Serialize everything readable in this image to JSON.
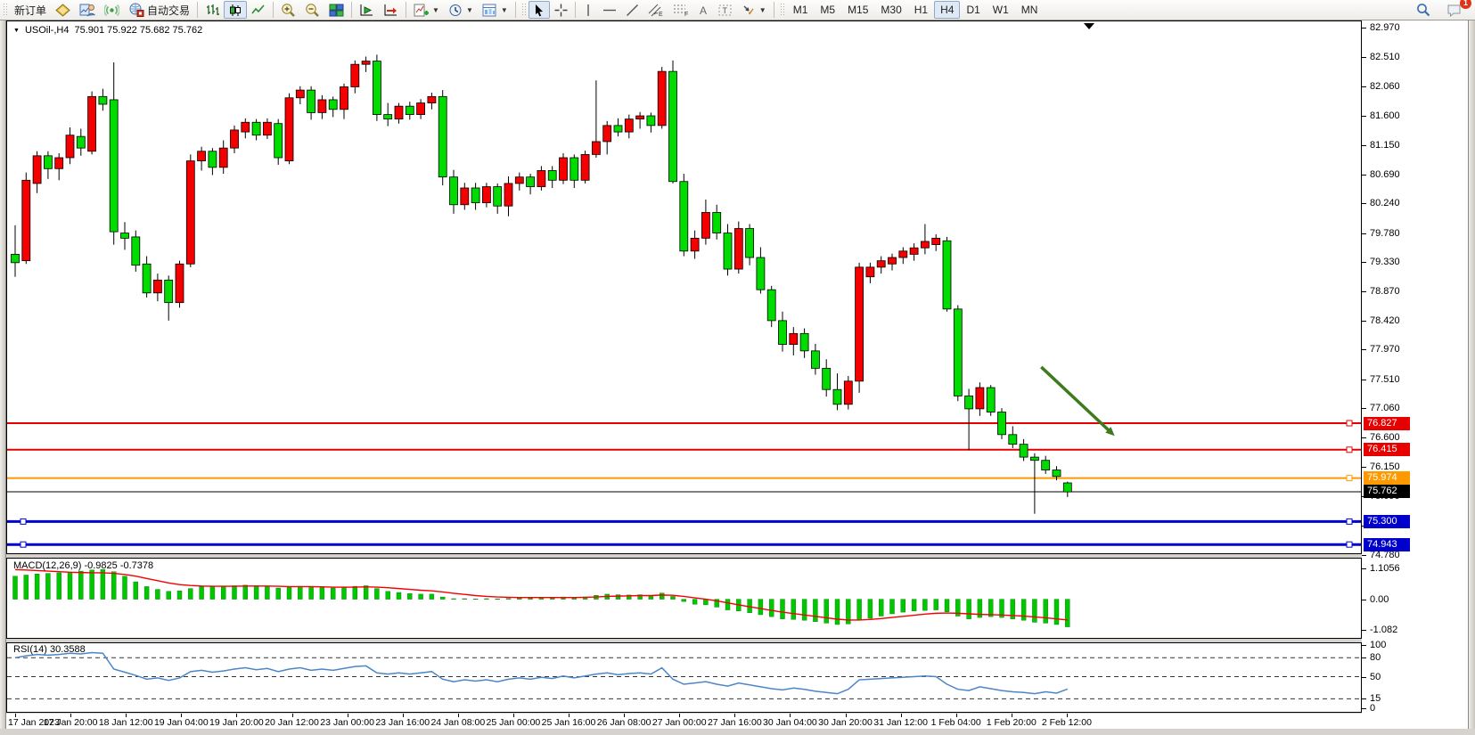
{
  "toolbar": {
    "new_order_label": "新订单",
    "auto_trading_label": "自动交易",
    "timeframes": [
      "M1",
      "M5",
      "M15",
      "M30",
      "H1",
      "H4",
      "D1",
      "W1",
      "MN"
    ],
    "active_timeframe": "H4",
    "notification_count": "1",
    "icons": [
      "market-watch-icon",
      "data-window-icon",
      "signals-icon",
      "auto-trading-icon",
      "bar-chart-icon",
      "candlestick-chart-icon",
      "line-chart-icon",
      "zoom-in-icon",
      "zoom-out-icon",
      "tile-windows-icon",
      "auto-scroll-icon",
      "chart-shift-icon",
      "indicators-icon",
      "periods-icon",
      "templates-icon",
      "cursor-icon",
      "crosshair-icon",
      "vertical-line-icon",
      "horizontal-line-icon",
      "trendline-icon",
      "channel-icon",
      "fibonacci-icon",
      "text-icon",
      "label-icon",
      "arrows-icon",
      "search-icon",
      "chat-icon"
    ]
  },
  "chart": {
    "symbol_label": "USOil-,H4",
    "ohlc_label": "75.901 75.922 75.682 75.762",
    "macd_label": "MACD(12,26,9) -0.9825 -0.7378",
    "rsi_label": "RSI(14) 30.3588"
  },
  "colors": {
    "up_candle": "#F40000",
    "down_candle": "#00DC00",
    "wick": "#000000",
    "macd_hist": "#00C800",
    "macd_signal": "#F40000",
    "rsi_line": "#4C86C8",
    "level_red": "#E60000",
    "level_orange": "#FF9900",
    "level_blue": "#0000CC",
    "price_line": "#000000",
    "arrow": "#3E7A1E"
  },
  "chart_data": {
    "type": "candlestick",
    "symbol": "USOil",
    "timeframe": "H4",
    "last_ohlc": {
      "open": 75.901,
      "high": 75.922,
      "low": 75.682,
      "close": 75.762
    },
    "price_ticks": [
      "82.970",
      "82.510",
      "82.060",
      "81.600",
      "81.150",
      "80.690",
      "80.240",
      "79.780",
      "79.330",
      "78.870",
      "78.420",
      "77.970",
      "77.510",
      "77.060",
      "76.600",
      "76.150",
      "75.690",
      "75.240",
      "74.780"
    ],
    "time_labels": [
      "17 Jan 2023",
      "17 Jan 20:00",
      "18 Jan 12:00",
      "19 Jan 04:00",
      "19 Jan 20:00",
      "20 Jan 12:00",
      "23 Jan 00:00",
      "23 Jan 16:00",
      "24 Jan 08:00",
      "25 Jan 00:00",
      "25 Jan 16:00",
      "26 Jan 08:00",
      "27 Jan 00:00",
      "27 Jan 16:00",
      "30 Jan 04:00",
      "30 Jan 20:00",
      "31 Jan 12:00",
      "1 Feb 04:00",
      "1 Feb 20:00",
      "2 Feb 12:00"
    ],
    "hlines": [
      {
        "price": 76.827,
        "label": "76.827",
        "color": "#E60000",
        "width": 2,
        "handles": "right"
      },
      {
        "price": 76.415,
        "label": "76.415",
        "color": "#E60000",
        "width": 2,
        "handles": "right"
      },
      {
        "price": 75.974,
        "label": "75.974",
        "color": "#FF9900",
        "width": 2,
        "handles": "right"
      },
      {
        "price": 75.762,
        "label": "75.762",
        "color": "#000000",
        "width": 1,
        "handles": "none"
      },
      {
        "price": 75.3,
        "label": "75.300",
        "color": "#0000CC",
        "width": 3,
        "handles": "left-right"
      },
      {
        "price": 74.943,
        "label": "74.943",
        "color": "#0000CC",
        "width": 3,
        "handles": "left-right"
      }
    ],
    "candles": [
      [
        79.45,
        79.9,
        79.1,
        79.32
      ],
      [
        79.35,
        80.72,
        79.3,
        80.6
      ],
      [
        80.55,
        81.05,
        80.4,
        80.98
      ],
      [
        80.98,
        81.05,
        80.62,
        80.78
      ],
      [
        80.78,
        81.02,
        80.6,
        80.95
      ],
      [
        80.95,
        81.42,
        80.85,
        81.3
      ],
      [
        81.28,
        81.4,
        80.98,
        81.1
      ],
      [
        81.05,
        81.98,
        81.0,
        81.9
      ],
      [
        81.9,
        82.02,
        81.68,
        81.78
      ],
      [
        81.85,
        82.43,
        79.6,
        79.8
      ],
      [
        79.78,
        79.95,
        79.52,
        79.7
      ],
      [
        79.72,
        79.82,
        79.18,
        79.28
      ],
      [
        79.3,
        79.42,
        78.78,
        78.85
      ],
      [
        78.85,
        79.15,
        78.72,
        79.05
      ],
      [
        79.05,
        79.12,
        78.42,
        78.7
      ],
      [
        78.7,
        79.35,
        78.62,
        79.3
      ],
      [
        79.3,
        81.0,
        79.25,
        80.9
      ],
      [
        80.9,
        81.12,
        80.75,
        81.05
      ],
      [
        81.05,
        81.1,
        80.68,
        80.8
      ],
      [
        80.8,
        81.22,
        80.7,
        81.1
      ],
      [
        81.1,
        81.45,
        81.02,
        81.38
      ],
      [
        81.35,
        81.56,
        81.25,
        81.5
      ],
      [
        81.5,
        81.55,
        81.22,
        81.3
      ],
      [
        81.3,
        81.56,
        81.24,
        81.5
      ],
      [
        81.48,
        81.55,
        80.84,
        80.95
      ],
      [
        80.9,
        81.95,
        80.85,
        81.88
      ],
      [
        81.88,
        82.06,
        81.78,
        82.0
      ],
      [
        82.0,
        82.06,
        81.54,
        81.65
      ],
      [
        81.65,
        81.92,
        81.55,
        81.85
      ],
      [
        81.85,
        81.9,
        81.58,
        81.7
      ],
      [
        81.7,
        82.1,
        81.55,
        82.05
      ],
      [
        82.05,
        82.46,
        81.95,
        82.4
      ],
      [
        82.4,
        82.52,
        82.28,
        82.45
      ],
      [
        82.45,
        82.55,
        81.52,
        81.62
      ],
      [
        81.62,
        81.8,
        81.44,
        81.55
      ],
      [
        81.55,
        81.8,
        81.48,
        81.75
      ],
      [
        81.75,
        81.82,
        81.54,
        81.62
      ],
      [
        81.62,
        81.86,
        81.55,
        81.8
      ],
      [
        81.8,
        81.96,
        81.7,
        81.9
      ],
      [
        81.9,
        82.0,
        80.52,
        80.65
      ],
      [
        80.65,
        80.76,
        80.08,
        80.22
      ],
      [
        80.22,
        80.56,
        80.14,
        80.48
      ],
      [
        80.48,
        80.56,
        80.14,
        80.25
      ],
      [
        80.25,
        80.56,
        80.18,
        80.5
      ],
      [
        80.5,
        80.55,
        80.08,
        80.2
      ],
      [
        80.2,
        80.66,
        80.04,
        80.55
      ],
      [
        80.55,
        80.72,
        80.44,
        80.65
      ],
      [
        80.65,
        80.7,
        80.38,
        80.5
      ],
      [
        80.5,
        80.82,
        80.44,
        80.75
      ],
      [
        80.75,
        80.82,
        80.48,
        80.6
      ],
      [
        80.6,
        81.02,
        80.54,
        80.95
      ],
      [
        80.95,
        81.0,
        80.48,
        80.6
      ],
      [
        80.6,
        81.06,
        80.55,
        81.0
      ],
      [
        81.0,
        82.15,
        80.95,
        81.2
      ],
      [
        81.2,
        81.52,
        81.0,
        81.45
      ],
      [
        81.45,
        81.56,
        81.28,
        81.35
      ],
      [
        81.35,
        81.62,
        81.25,
        81.55
      ],
      [
        81.55,
        81.66,
        81.4,
        81.6
      ],
      [
        81.6,
        81.65,
        81.34,
        81.45
      ],
      [
        81.45,
        82.36,
        81.4,
        82.29
      ],
      [
        82.29,
        82.46,
        80.55,
        80.58
      ],
      [
        80.58,
        80.7,
        79.42,
        79.5
      ],
      [
        79.5,
        79.82,
        79.38,
        79.7
      ],
      [
        79.7,
        80.3,
        79.6,
        80.1
      ],
      [
        80.1,
        80.22,
        79.68,
        79.78
      ],
      [
        79.78,
        79.92,
        79.12,
        79.22
      ],
      [
        79.22,
        79.96,
        79.15,
        79.85
      ],
      [
        79.85,
        79.92,
        79.28,
        79.4
      ],
      [
        79.4,
        79.56,
        78.84,
        78.9
      ],
      [
        78.9,
        78.96,
        78.32,
        78.42
      ],
      [
        78.42,
        78.56,
        77.94,
        78.05
      ],
      [
        78.05,
        78.32,
        77.88,
        78.22
      ],
      [
        78.22,
        78.3,
        77.84,
        77.95
      ],
      [
        77.95,
        78.06,
        77.58,
        77.68
      ],
      [
        77.68,
        77.82,
        77.24,
        77.35
      ],
      [
        77.35,
        77.6,
        77.03,
        77.12
      ],
      [
        77.12,
        77.56,
        77.04,
        77.48
      ],
      [
        77.48,
        79.32,
        77.3,
        79.25
      ],
      [
        79.1,
        79.32,
        79.0,
        79.25
      ],
      [
        79.25,
        79.42,
        79.15,
        79.35
      ],
      [
        79.3,
        79.46,
        79.2,
        79.4
      ],
      [
        79.4,
        79.56,
        79.3,
        79.5
      ],
      [
        79.45,
        79.62,
        79.35,
        79.55
      ],
      [
        79.55,
        79.92,
        79.45,
        79.65
      ],
      [
        79.6,
        79.76,
        79.5,
        79.7
      ],
      [
        79.66,
        79.72,
        78.56,
        78.6
      ],
      [
        78.6,
        78.66,
        77.17,
        77.25
      ],
      [
        77.25,
        77.36,
        76.41,
        77.05
      ],
      [
        77.05,
        77.46,
        76.94,
        77.38
      ],
      [
        77.38,
        77.42,
        76.94,
        77.0
      ],
      [
        77.0,
        77.06,
        76.58,
        76.65
      ],
      [
        76.65,
        76.78,
        76.44,
        76.5
      ],
      [
        76.5,
        76.58,
        76.24,
        76.3
      ],
      [
        76.3,
        76.36,
        75.42,
        76.25
      ],
      [
        76.25,
        76.32,
        76.04,
        76.1
      ],
      [
        76.1,
        76.16,
        75.94,
        76.0
      ],
      [
        75.9,
        75.92,
        75.68,
        75.76
      ]
    ],
    "indicators": {
      "macd": {
        "label": "MACD(12,26,9)",
        "main_value": -0.9825,
        "signal_value": -0.7378,
        "scale_labels": [
          {
            "label": "1.1056",
            "v": 1.1056
          },
          {
            "label": "0.00",
            "v": 0
          },
          {
            "label": "-1.082",
            "v": -1.082
          }
        ],
        "main": [
          0.82,
          0.86,
          0.9,
          0.92,
          0.94,
          0.97,
          1.0,
          1.04,
          1.06,
          0.98,
          0.82,
          0.62,
          0.45,
          0.35,
          0.28,
          0.3,
          0.38,
          0.44,
          0.46,
          0.47,
          0.48,
          0.5,
          0.48,
          0.47,
          0.4,
          0.42,
          0.46,
          0.44,
          0.42,
          0.4,
          0.42,
          0.46,
          0.48,
          0.38,
          0.28,
          0.24,
          0.2,
          0.18,
          0.18,
          0.08,
          0.02,
          0.02,
          0.01,
          0.02,
          0.01,
          0.03,
          0.05,
          0.04,
          0.06,
          0.05,
          0.08,
          0.06,
          0.08,
          0.14,
          0.18,
          0.16,
          0.15,
          0.16,
          0.14,
          0.22,
          0.1,
          -0.08,
          -0.18,
          -0.2,
          -0.28,
          -0.38,
          -0.42,
          -0.48,
          -0.55,
          -0.62,
          -0.7,
          -0.72,
          -0.75,
          -0.8,
          -0.85,
          -0.9,
          -0.88,
          -0.75,
          -0.68,
          -0.6,
          -0.52,
          -0.46,
          -0.42,
          -0.4,
          -0.38,
          -0.45,
          -0.6,
          -0.7,
          -0.65,
          -0.62,
          -0.65,
          -0.7,
          -0.75,
          -0.82,
          -0.85,
          -0.9,
          -0.9825
        ],
        "signal": [
          1.05,
          1.04,
          1.02,
          1.0,
          0.98,
          0.96,
          0.95,
          0.94,
          0.94,
          0.92,
          0.88,
          0.82,
          0.74,
          0.66,
          0.58,
          0.52,
          0.49,
          0.47,
          0.46,
          0.46,
          0.46,
          0.47,
          0.47,
          0.47,
          0.46,
          0.45,
          0.45,
          0.45,
          0.44,
          0.43,
          0.43,
          0.43,
          0.44,
          0.43,
          0.41,
          0.38,
          0.35,
          0.32,
          0.3,
          0.26,
          0.21,
          0.17,
          0.13,
          0.1,
          0.08,
          0.07,
          0.06,
          0.06,
          0.06,
          0.06,
          0.06,
          0.06,
          0.07,
          0.08,
          0.1,
          0.11,
          0.12,
          0.13,
          0.13,
          0.15,
          0.14,
          0.1,
          0.05,
          0.0,
          -0.06,
          -0.13,
          -0.2,
          -0.27,
          -0.33,
          -0.4,
          -0.46,
          -0.51,
          -0.56,
          -0.61,
          -0.66,
          -0.71,
          -0.74,
          -0.74,
          -0.72,
          -0.69,
          -0.65,
          -0.61,
          -0.57,
          -0.53,
          -0.5,
          -0.49,
          -0.5,
          -0.52,
          -0.54,
          -0.55,
          -0.56,
          -0.58,
          -0.6,
          -0.63,
          -0.66,
          -0.7,
          -0.7378
        ]
      },
      "rsi": {
        "label": "RSI(14)",
        "value": 30.3588,
        "levels": [
          80,
          50,
          15
        ],
        "scale_labels": [
          {
            "label": "100",
            "v": 100
          },
          {
            "label": "80",
            "v": 80
          },
          {
            "label": "50",
            "v": 50
          },
          {
            "label": "15",
            "v": 15
          },
          {
            "label": "0",
            "v": 0
          }
        ],
        "series": [
          80,
          83,
          85,
          84,
          85,
          87,
          86,
          88,
          87,
          62,
          57,
          52,
          46,
          48,
          44,
          48,
          58,
          60,
          57,
          59,
          62,
          64,
          61,
          63,
          58,
          62,
          64,
          60,
          62,
          60,
          63,
          66,
          67,
          56,
          54,
          56,
          54,
          56,
          58,
          46,
          42,
          45,
          43,
          45,
          42,
          46,
          48,
          46,
          49,
          47,
          51,
          48,
          51,
          54,
          56,
          53,
          55,
          56,
          54,
          64,
          46,
          38,
          40,
          42,
          38,
          35,
          40,
          37,
          34,
          31,
          29,
          32,
          30,
          27,
          25,
          23,
          30,
          45,
          46,
          47,
          48,
          49,
          50,
          51,
          50,
          38,
          30,
          28,
          34,
          31,
          28,
          26,
          25,
          23,
          26,
          24,
          30.36
        ]
      }
    },
    "annotations": [
      {
        "type": "arrow",
        "from": {
          "bar": 93.6,
          "price": 77.7
        },
        "to": {
          "bar": 100.3,
          "price": 76.63
        },
        "color": "#3E7A1E"
      }
    ]
  }
}
